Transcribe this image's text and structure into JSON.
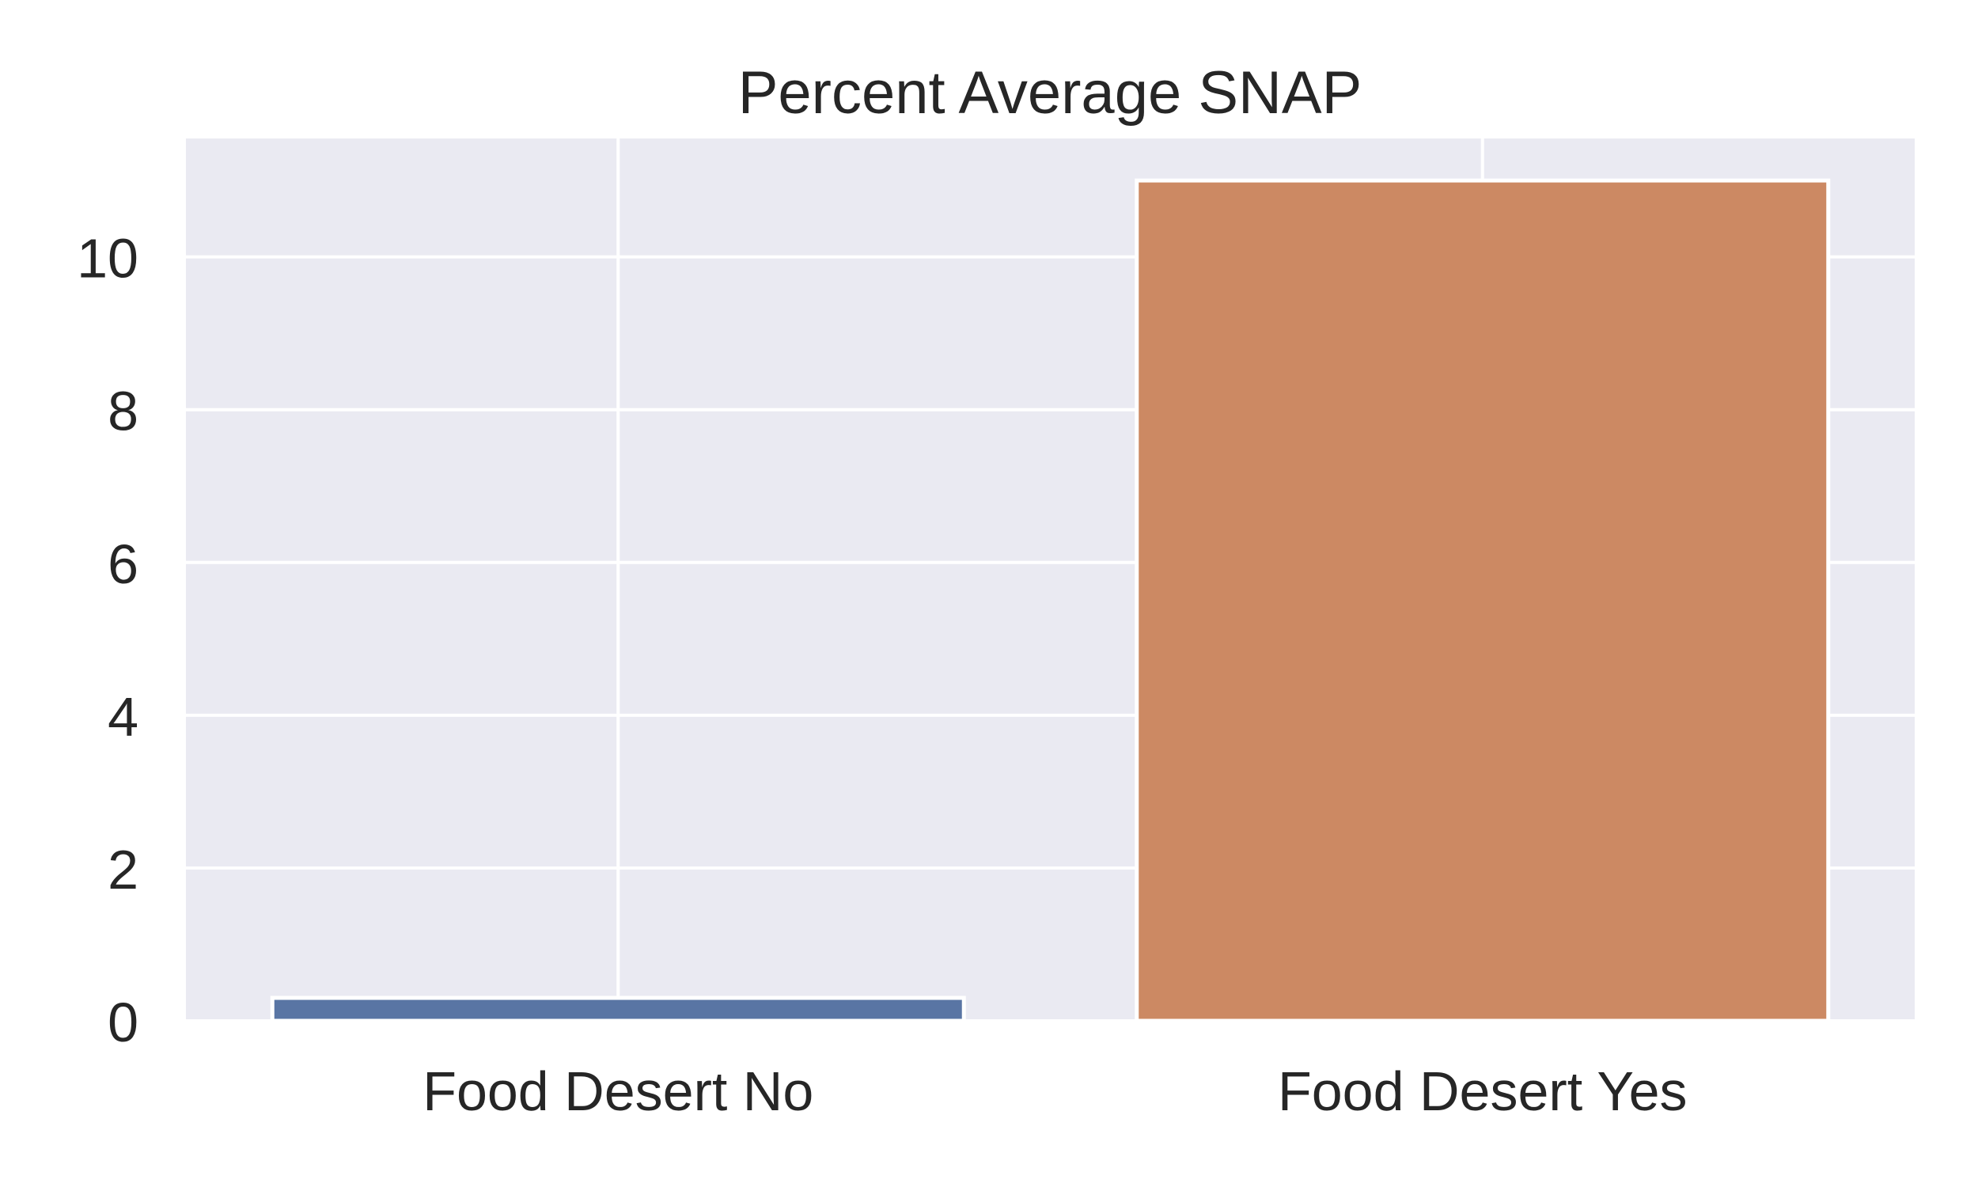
{
  "chart_data": {
    "type": "bar",
    "title": "Percent Average SNAP",
    "xlabel": "",
    "ylabel": "",
    "categories": [
      "Food Desert No",
      "Food Desert Yes"
    ],
    "values": [
      0.3,
      11.0
    ],
    "ylim": [
      0,
      11.55
    ],
    "yticks": [
      "0",
      "2",
      "4",
      "6",
      "8",
      "10"
    ],
    "ytick_values": [
      0,
      2,
      4,
      6,
      8,
      10
    ],
    "grid": true,
    "colors": {
      "plot_background": "#eaeaf2",
      "gridline": "#ffffff",
      "bars": [
        "#5975a4",
        "#cc8963"
      ],
      "bar_edge": "#ffffff",
      "text": "#262626"
    }
  }
}
